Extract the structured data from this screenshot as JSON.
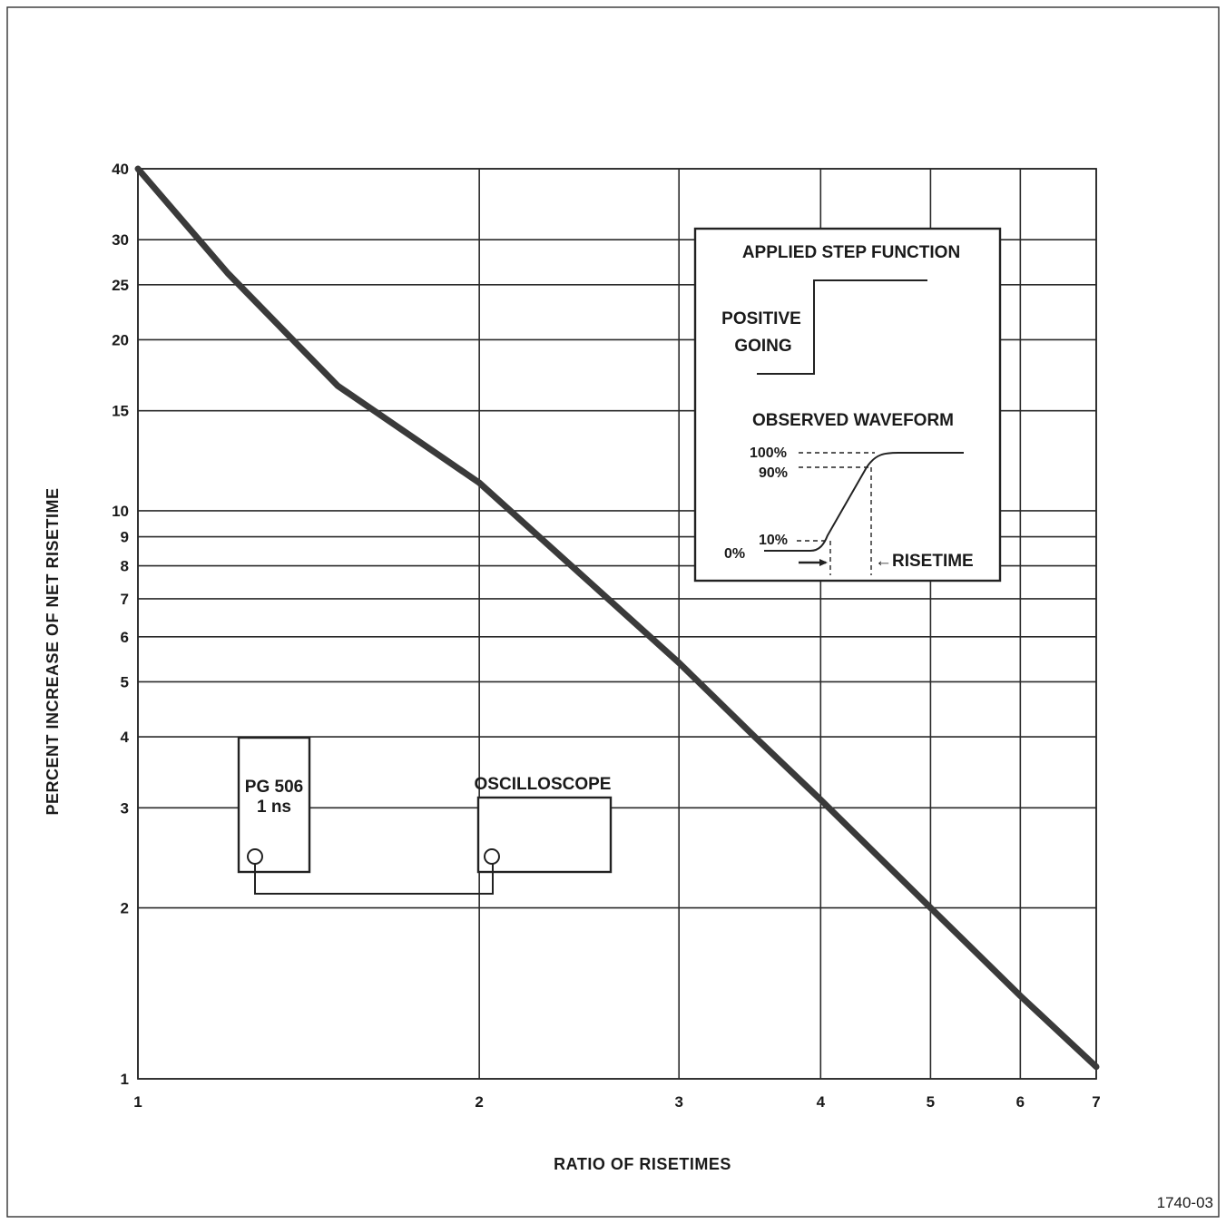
{
  "chart_data": {
    "type": "line",
    "title": "",
    "xlabel": "RATIO OF RISETIMES",
    "ylabel": "PERCENT INCREASE OF NET RISETIME",
    "x_scale": "log",
    "y_scale": "log",
    "xlim": [
      1,
      7
    ],
    "ylim": [
      1,
      40
    ],
    "grid": true,
    "x_ticks": [
      1,
      2,
      3,
      4,
      5,
      6,
      7
    ],
    "x_tick_labels": [
      "1",
      "2",
      "3",
      "4",
      "5",
      "6",
      "7"
    ],
    "y_ticks": [
      1,
      2,
      3,
      4,
      5,
      6,
      7,
      8,
      9,
      10,
      15,
      20,
      25,
      30,
      40
    ],
    "y_tick_labels": [
      "1",
      "2",
      "3",
      "4",
      "5",
      "6",
      "7",
      "8",
      "9",
      "10",
      "15",
      "20",
      "25",
      "30",
      "40"
    ],
    "series": [
      {
        "x": [
          1,
          1.2,
          1.5,
          2,
          2.5,
          3,
          3.5,
          4,
          5,
          6,
          7
        ],
        "y": [
          40,
          26.2,
          16.6,
          11.2,
          7.5,
          5.4,
          4.0,
          3.1,
          2.0,
          1.4,
          1.05
        ]
      }
    ]
  },
  "inset": {
    "step_title": "APPLIED STEP FUNCTION",
    "step_line1": "POSITIVE",
    "step_line2": "GOING",
    "waveform_title": "OBSERVED WAVEFORM",
    "label_100": "100%",
    "label_90": "90%",
    "label_10": "10%",
    "label_0": "0%",
    "risetime": "←RISETIME"
  },
  "setup": {
    "generator_line1": "PG 506",
    "generator_line2": "1 ns",
    "oscilloscope": "OSCILLOSCOPE"
  },
  "figure_number": "1740-03"
}
